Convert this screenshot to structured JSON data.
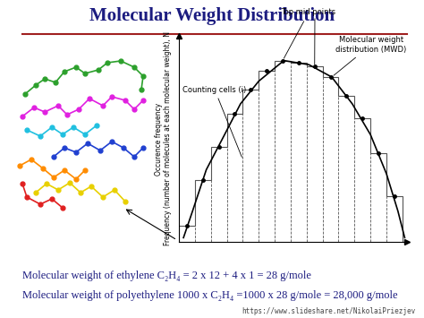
{
  "header": {
    "title": "Molecular Weight Distribution"
  },
  "chart_data": {
    "type": "histogram",
    "bins": [
      0,
      7,
      14,
      21,
      28,
      35,
      42,
      49,
      56,
      63,
      70,
      77,
      84,
      91,
      98
    ],
    "counts": [
      8,
      30,
      46,
      62,
      74,
      83,
      88,
      87,
      85,
      80,
      71,
      60,
      43,
      22
    ],
    "color": "#555555",
    "marker": "o",
    "curve": {
      "x": [
        2,
        6,
        12,
        20,
        27,
        35,
        46,
        57,
        67,
        76,
        84,
        91,
        96,
        99
      ],
      "y": [
        2,
        15,
        35,
        52,
        67,
        78,
        88,
        86,
        80,
        67,
        52,
        33,
        15,
        2
      ],
      "color": "#000000"
    },
    "xlim": [
      0,
      100
    ],
    "ylim": [
      0,
      100
    ],
    "xticks": [],
    "yticks": [],
    "tick_labels": false,
    "ylabel": [
      "Occurence frequency",
      "Frequency (number of molecules at each molecular weight), N"
    ],
    "annotations": [
      {
        "text": "Top mid points"
      },
      {
        "text": "Counting cells (i)"
      },
      {
        "text": "Molecular weight\ndistribution (MWD)"
      }
    ]
  },
  "footer": {
    "lines": [
      "Molecular weight of ethylene C₂H₄ = 2 x 12 + 4 x 1 = 28 g/mole",
      "Molecular weight of polyethylene 1000 x C₂H₄ =1000 x 28 g/mole = 28,000 g/mole"
    ],
    "source": "https://www.slideshare.net/NikolaiPriezjev"
  }
}
